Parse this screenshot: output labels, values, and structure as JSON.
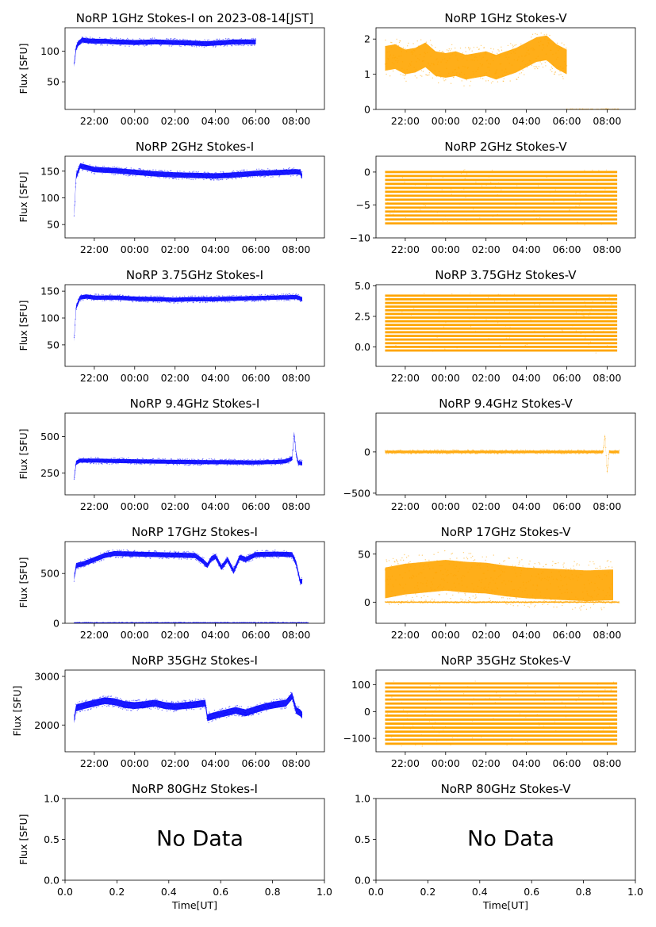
{
  "chart_data": [
    {
      "id": "norp-1ghz-i",
      "type": "scatter",
      "title": "NoRP 1GHz Stokes-I on 2023-08-14[JST]",
      "ylabel": "Flux [SFU]",
      "xlabel": "",
      "xlim": [
        20.55,
        33.4
      ],
      "ylim": [
        5,
        138
      ],
      "yticks": [
        50,
        100
      ],
      "xticks": [
        "22:00",
        "00:00",
        "02:00",
        "04:00",
        "06:00",
        "08:00"
      ],
      "color": "#0000ff",
      "series": [
        {
          "x": [
            21.0,
            21.1,
            21.2,
            21.4,
            21.6,
            22.0,
            22.5,
            23.0,
            24.0,
            25.0,
            26.0,
            27.0,
            27.5,
            28.0,
            28.5,
            29.0,
            29.5,
            30.0
          ],
          "y": [
            78,
            105,
            112,
            118,
            117,
            116,
            116,
            115,
            114,
            115,
            114,
            113,
            112,
            113,
            114,
            115,
            115,
            115
          ],
          "band": 4
        }
      ]
    },
    {
      "id": "norp-1ghz-v",
      "type": "scatter",
      "title": "NoRP 1GHz Stokes-V",
      "ylabel": "",
      "xlabel": "",
      "xlim": [
        20.55,
        33.4
      ],
      "ylim": [
        0,
        2.32
      ],
      "yticks": [
        0,
        1,
        2
      ],
      "xticks": [
        "22:00",
        "00:00",
        "02:00",
        "04:00",
        "06:00",
        "08:00"
      ],
      "color": "#ffa500",
      "series": [
        {
          "x": [
            21.0,
            21.5,
            22.0,
            22.5,
            23.0,
            23.5,
            24.0,
            24.5,
            25.0,
            25.5,
            26.0,
            26.5,
            27.0,
            27.5,
            28.0,
            28.5,
            29.0,
            29.5,
            30.0
          ],
          "y": [
            1.45,
            1.5,
            1.35,
            1.4,
            1.55,
            1.3,
            1.25,
            1.3,
            1.2,
            1.25,
            1.3,
            1.2,
            1.3,
            1.4,
            1.55,
            1.7,
            1.75,
            1.5,
            1.35
          ],
          "band": 0.35
        },
        {
          "x": [
            30.0,
            32.6
          ],
          "y": [
            0.0,
            0.0
          ],
          "band": 0.01
        }
      ]
    },
    {
      "id": "norp-2ghz-i",
      "type": "scatter",
      "title": "NoRP 2GHz Stokes-I",
      "ylabel": "Flux [SFU]",
      "xlabel": "",
      "xlim": [
        20.55,
        33.4
      ],
      "ylim": [
        25,
        178
      ],
      "yticks": [
        50,
        100,
        150
      ],
      "xticks": [
        "22:00",
        "00:00",
        "02:00",
        "04:00",
        "06:00",
        "08:00"
      ],
      "color": "#0000ff",
      "series": [
        {
          "x": [
            21.0,
            21.1,
            21.3,
            21.5,
            22.0,
            23.0,
            24.0,
            25.0,
            26.0,
            27.0,
            28.0,
            29.0,
            30.0,
            31.0,
            32.0,
            32.2,
            32.3
          ],
          "y": [
            68,
            140,
            160,
            158,
            153,
            151,
            148,
            145,
            143,
            142,
            141,
            143,
            146,
            147,
            149,
            148,
            140
          ],
          "band": 5
        }
      ]
    },
    {
      "id": "norp-2ghz-v",
      "type": "scatter",
      "title": "NoRP 2GHz Stokes-V",
      "ylabel": "",
      "xlabel": "",
      "xlim": [
        20.55,
        33.4
      ],
      "ylim": [
        -10,
        2.4
      ],
      "yticks": [
        -10,
        -5,
        0
      ],
      "xticks": [
        "22:00",
        "00:00",
        "02:00",
        "04:00",
        "06:00",
        "08:00"
      ],
      "color": "#ffa500",
      "stripes": {
        "x": [
          21.0,
          32.5
        ],
        "levels": [
          0,
          -0.6,
          -1.2,
          -1.8,
          -2.4,
          -3.0,
          -3.6,
          -4.2,
          -4.8,
          -5.4,
          -6.0,
          -6.6,
          -7.2,
          -7.8
        ]
      }
    },
    {
      "id": "norp-375ghz-i",
      "type": "scatter",
      "title": "NoRP 3.75GHz Stokes-I",
      "ylabel": "Flux [SFU]",
      "xlabel": "",
      "xlim": [
        20.55,
        33.4
      ],
      "ylim": [
        10,
        162
      ],
      "yticks": [
        50,
        100,
        150
      ],
      "xticks": [
        "22:00",
        "00:00",
        "02:00",
        "04:00",
        "06:00",
        "08:00"
      ],
      "color": "#0000ff",
      "series": [
        {
          "x": [
            21.0,
            21.1,
            21.3,
            21.6,
            22.0,
            23.0,
            24.0,
            25.0,
            26.0,
            27.0,
            28.0,
            29.0,
            30.0,
            31.0,
            32.0,
            32.3
          ],
          "y": [
            60,
            120,
            138,
            140,
            138,
            138,
            136,
            135,
            134,
            135,
            135,
            136,
            137,
            138,
            139,
            135
          ],
          "band": 4
        }
      ]
    },
    {
      "id": "norp-375ghz-v",
      "type": "scatter",
      "title": "NoRP 3.75GHz Stokes-V",
      "ylabel": "",
      "xlabel": "",
      "xlim": [
        20.55,
        33.4
      ],
      "ylim": [
        -1.6,
        5.1
      ],
      "yticks": [
        0.0,
        2.5,
        5.0
      ],
      "xticks": [
        "22:00",
        "00:00",
        "02:00",
        "04:00",
        "06:00",
        "08:00"
      ],
      "color": "#ffa500",
      "stripes": {
        "x": [
          21.0,
          32.5
        ],
        "levels": [
          -0.3,
          0,
          0.3,
          0.6,
          0.9,
          1.2,
          1.5,
          1.8,
          2.1,
          2.4,
          2.7,
          3.0,
          3.3,
          3.6,
          3.9,
          4.2
        ]
      }
    },
    {
      "id": "norp-94ghz-i",
      "type": "scatter",
      "title": "NoRP 9.4GHz Stokes-I",
      "ylabel": "Flux [SFU]",
      "xlabel": "",
      "xlim": [
        20.55,
        33.4
      ],
      "ylim": [
        100,
        660
      ],
      "yticks": [
        250,
        500
      ],
      "xticks": [
        "22:00",
        "00:00",
        "02:00",
        "04:00",
        "06:00",
        "08:00"
      ],
      "color": "#0000ff",
      "series": [
        {
          "x": [
            21.0,
            21.1,
            21.3,
            22.0,
            23.0,
            24.0,
            25.0,
            26.0,
            27.0,
            28.0,
            29.0,
            30.0,
            31.0,
            31.5,
            31.8,
            31.9,
            32.0,
            32.1,
            32.3
          ],
          "y": [
            210,
            320,
            335,
            335,
            332,
            330,
            328,
            326,
            325,
            324,
            323,
            322,
            325,
            330,
            350,
            520,
            380,
            320,
            315
          ],
          "band": 14
        }
      ]
    },
    {
      "id": "norp-94ghz-v",
      "type": "scatter",
      "title": "NoRP 9.4GHz Stokes-V",
      "ylabel": "",
      "xlabel": "",
      "xlim": [
        20.55,
        33.4
      ],
      "ylim": [
        -520,
        470
      ],
      "yticks": [
        -500,
        0
      ],
      "xticks": [
        "22:00",
        "00:00",
        "02:00",
        "04:00",
        "06:00",
        "08:00"
      ],
      "color": "#ffa500",
      "series": [
        {
          "x": [
            21.0,
            23.0,
            25.0,
            27.0,
            29.0,
            31.0,
            31.8,
            31.9,
            32.0,
            32.1,
            32.6
          ],
          "y": [
            0,
            0,
            0,
            0,
            0,
            0,
            0,
            200,
            -250,
            0,
            0
          ],
          "band": 15
        }
      ]
    },
    {
      "id": "norp-17ghz-i",
      "type": "scatter",
      "title": "NoRP 17GHz Stokes-I",
      "ylabel": "Flux [SFU]",
      "xlabel": "",
      "xlim": [
        20.55,
        33.4
      ],
      "ylim": [
        0,
        820
      ],
      "yticks": [
        0,
        500
      ],
      "xticks": [
        "22:00",
        "00:00",
        "02:00",
        "04:00",
        "06:00",
        "08:00"
      ],
      "color": "#0000ff",
      "series": [
        {
          "x": [
            21.0,
            21.1,
            21.5,
            22.0,
            22.5,
            23.0,
            24.0,
            25.0,
            26.0,
            27.0,
            27.4,
            27.6,
            27.8,
            28.0,
            28.3,
            28.6,
            28.9,
            29.2,
            29.5,
            30.0,
            31.0,
            31.8,
            32.0,
            32.2,
            32.3
          ],
          "y": [
            450,
            580,
            600,
            640,
            680,
            700,
            695,
            690,
            685,
            680,
            620,
            580,
            650,
            670,
            560,
            640,
            520,
            660,
            640,
            690,
            695,
            690,
            600,
            420,
            420
          ],
          "band": 25
        },
        {
          "x": [
            21.0,
            32.6
          ],
          "y": [
            5,
            5
          ],
          "band": 3
        }
      ]
    },
    {
      "id": "norp-17ghz-v",
      "type": "scatter",
      "title": "NoRP 17GHz Stokes-V",
      "ylabel": "",
      "xlabel": "",
      "xlim": [
        20.55,
        33.4
      ],
      "ylim": [
        -22,
        63
      ],
      "yticks": [
        0,
        50
      ],
      "xticks": [
        "22:00",
        "00:00",
        "02:00",
        "04:00",
        "06:00",
        "08:00"
      ],
      "color": "#ffa500",
      "series": [
        {
          "x": [
            21.0,
            22.0,
            23.0,
            24.0,
            25.0,
            26.0,
            27.0,
            28.0,
            29.0,
            30.0,
            31.0,
            32.3
          ],
          "y": [
            20,
            24,
            26,
            28,
            26,
            25,
            22,
            20,
            19,
            18,
            17,
            18
          ],
          "band": 16
        },
        {
          "x": [
            21.0,
            32.6
          ],
          "y": [
            0,
            0
          ],
          "band": 0.5
        }
      ]
    },
    {
      "id": "norp-35ghz-i",
      "type": "scatter",
      "title": "NoRP 35GHz Stokes-I",
      "ylabel": "Flux [SFU]",
      "xlabel": "",
      "xlim": [
        20.55,
        33.4
      ],
      "ylim": [
        1450,
        3130
      ],
      "yticks": [
        2000,
        3000
      ],
      "xticks": [
        "22:00",
        "00:00",
        "02:00",
        "04:00",
        "06:00",
        "08:00"
      ],
      "color": "#0000ff",
      "series": [
        {
          "x": [
            21.0,
            21.1,
            21.5,
            22.0,
            22.5,
            23.0,
            23.5,
            24.0,
            24.5,
            25.0,
            25.5,
            26.0,
            26.5,
            27.0,
            27.5,
            27.6,
            28.0,
            28.5,
            29.0,
            29.5,
            30.0,
            30.5,
            31.0,
            31.5,
            31.8,
            32.0,
            32.2,
            32.3
          ],
          "y": [
            2100,
            2350,
            2400,
            2450,
            2500,
            2480,
            2420,
            2400,
            2420,
            2450,
            2400,
            2380,
            2400,
            2420,
            2450,
            2150,
            2200,
            2250,
            2300,
            2250,
            2320,
            2380,
            2420,
            2450,
            2600,
            2300,
            2250,
            2200
          ],
          "band": 70
        }
      ]
    },
    {
      "id": "norp-35ghz-v",
      "type": "scatter",
      "title": "NoRP 35GHz Stokes-V",
      "ylabel": "",
      "xlabel": "",
      "xlim": [
        20.55,
        33.4
      ],
      "ylim": [
        -150,
        155
      ],
      "yticks": [
        -100,
        0,
        100
      ],
      "xticks": [
        "22:00",
        "00:00",
        "02:00",
        "04:00",
        "06:00",
        "08:00"
      ],
      "color": "#ffa500",
      "stripes": {
        "x": [
          21.0,
          32.5
        ],
        "levels": [
          -120,
          -105,
          -90,
          -75,
          -60,
          -45,
          -30,
          -15,
          0,
          15,
          30,
          45,
          60,
          75,
          90,
          105
        ]
      }
    },
    {
      "id": "norp-80ghz-i",
      "type": "scatter",
      "title": "NoRP 80GHz Stokes-I",
      "ylabel": "Flux [SFU]",
      "xlabel": "Time[UT]",
      "xlim": [
        0,
        1
      ],
      "ylim": [
        0,
        1
      ],
      "yticks": [
        0.0,
        0.5,
        1.0
      ],
      "xticks": [
        "0.0",
        "0.2",
        "0.4",
        "0.6",
        "0.8",
        "1.0"
      ],
      "annotation": "No Data",
      "series": []
    },
    {
      "id": "norp-80ghz-v",
      "type": "scatter",
      "title": "NoRP 80GHz Stokes-V",
      "ylabel": "",
      "xlabel": "Time[UT]",
      "xlim": [
        0,
        1
      ],
      "ylim": [
        0,
        1
      ],
      "yticks": [
        0.0,
        0.5,
        1.0
      ],
      "xticks": [
        "0.0",
        "0.2",
        "0.4",
        "0.6",
        "0.8",
        "1.0"
      ],
      "annotation": "No Data",
      "series": []
    }
  ]
}
